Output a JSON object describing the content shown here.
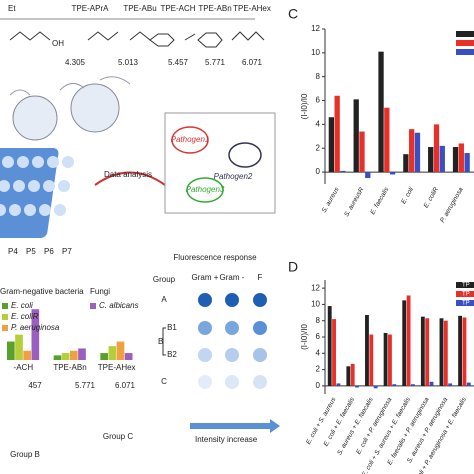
{
  "top": {
    "names": [
      "Et",
      "TPE-APrA",
      "TPE-ABu",
      "TPE-ACH",
      "TPE-ABn",
      "TPE-AHex"
    ],
    "numbers": [
      "4.305",
      "5.013",
      "5.457",
      "5.771",
      "6.071"
    ]
  },
  "middle": {
    "plate_labels": [
      "P4",
      "P5",
      "P6",
      "P7"
    ],
    "arrow_label": "Data analysis",
    "pathogens": [
      "Pathogen1",
      "Pathogen2",
      "Pathogen3"
    ]
  },
  "bottom_left": {
    "legend_headers": [
      "Gram-negative bacteria",
      "Fungi"
    ],
    "numbers": [
      "457",
      "5.771",
      "6.071"
    ],
    "groups": [
      "Group B",
      "Group C"
    ]
  },
  "fluorescence": {
    "title": "Fluorescence response",
    "group_header": "Group",
    "columns": [
      "Gram\n+",
      "Gram\n-",
      "F"
    ],
    "rows": [
      "A",
      "B1",
      "B2",
      "C"
    ],
    "bracket": "B",
    "arrow_label": "Intensity increase"
  },
  "chart_data": [
    {
      "type": "bar",
      "panel": "C",
      "y_label": "(I-I0)/I0",
      "categories": [
        "S. aureus",
        "S. aureusR",
        "E. faecalis",
        "E. coli",
        "E. coliR",
        "P. aeruginosa"
      ],
      "series": [
        {
          "color": "#222222",
          "values": [
            4.6,
            6.1,
            10.1,
            1.5,
            2.1,
            2.1
          ]
        },
        {
          "color": "#e8302a",
          "values": [
            6.4,
            3.4,
            5.4,
            3.6,
            4.0,
            2.4
          ]
        },
        {
          "color": "#3a4fc4",
          "values": [
            0.1,
            -0.5,
            -0.2,
            3.3,
            2.2,
            1.6
          ]
        }
      ],
      "ylim": [
        -1,
        12
      ],
      "yticks": [
        0,
        2,
        4,
        6,
        8,
        10,
        12
      ]
    },
    {
      "type": "bar",
      "panel": "D",
      "y_label": "(I-I0)/I0",
      "categories": [
        "E. coli + S. aureus",
        "E. coli + E. faecalis",
        "S. aureus + E. faecalis",
        "E. coli + P. aeruginosa",
        "E. coli + S. aureus + E. faecalis",
        "E. faecalis + P. aeruginosa",
        "S. aureus + P. aeruginosa",
        "E. coli + P. aeruginosa + E. faecalis"
      ],
      "series": [
        {
          "name": "TP",
          "color": "#222222",
          "values": [
            9.8,
            2.4,
            8.7,
            6.5,
            10.5,
            8.5,
            8.3,
            8.6
          ]
        },
        {
          "name": "TP",
          "color": "#e8302a",
          "values": [
            8.2,
            2.7,
            6.3,
            6.3,
            11.1,
            8.3,
            8.0,
            8.4
          ]
        },
        {
          "name": "TP",
          "color": "#3a4fc4",
          "values": [
            0.3,
            -0.2,
            -0.3,
            0.2,
            0.2,
            0.5,
            0.3,
            0.4
          ]
        }
      ],
      "ylim": [
        -1,
        13
      ],
      "yticks": [
        0,
        2,
        4,
        6,
        8,
        10,
        12
      ]
    },
    {
      "type": "bar",
      "panel": "left",
      "categories": [
        "-ACH",
        "TPE-ABn",
        "TPE-AHex"
      ],
      "series": [
        {
          "name": "E. coli",
          "color": "#5aa02c",
          "values": [
            0.8,
            0.2,
            0.3
          ]
        },
        {
          "name": "E. coliR",
          "color": "#b5cf3a",
          "values": [
            1.1,
            0.3,
            0.6
          ]
        },
        {
          "name": "P. aeruginosa",
          "color": "#f0a040",
          "values": [
            0.4,
            0.4,
            0.8
          ]
        },
        {
          "name": "C. albicans",
          "color": "#9b5fc0",
          "values": [
            2.2,
            0.5,
            0.3
          ]
        }
      ],
      "ylim": [
        0,
        2.6
      ]
    }
  ]
}
